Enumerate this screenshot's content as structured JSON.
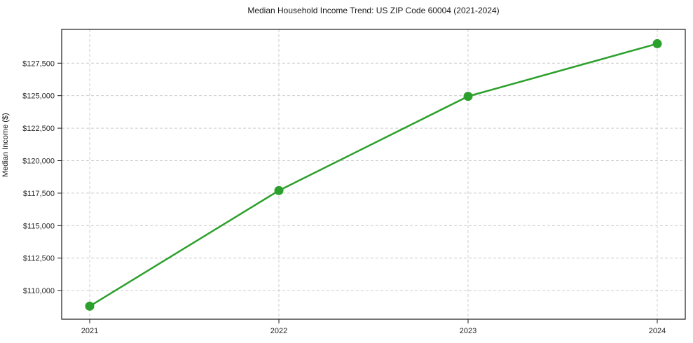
{
  "figure": {
    "title": "Median Household Income Trend: US ZIP Code 60004 (2021-2024)",
    "y_axis_label": "Median Income ($)"
  },
  "chart_data": {
    "type": "line",
    "title": "Median Household Income Trend: US ZIP Code 60004 (2021-2024)",
    "xlabel": "",
    "ylabel": "Median Income ($)",
    "categories": [
      "2021",
      "2022",
      "2023",
      "2024"
    ],
    "series": [
      {
        "name": "Median Household Income",
        "values": [
          108800,
          117700,
          124950,
          129000
        ]
      }
    ],
    "ylim": [
      107800,
      130100
    ],
    "yticks": [
      {
        "value": 110000,
        "label": "$110,000"
      },
      {
        "value": 112500,
        "label": "$112,500"
      },
      {
        "value": 115000,
        "label": "$115,000"
      },
      {
        "value": 117500,
        "label": "$117,500"
      },
      {
        "value": 120000,
        "label": "$120,000"
      },
      {
        "value": 122500,
        "label": "$122,500"
      },
      {
        "value": 125000,
        "label": "$125,000"
      },
      {
        "value": 127500,
        "label": "$127,500"
      }
    ],
    "grid": "both-dashed",
    "legend_position": "none",
    "line_color": "#2ca02c",
    "marker": "circle",
    "grid_color": "#cccccc",
    "frame_color": "#1a1a1a",
    "tick_text_color": "#262626"
  }
}
